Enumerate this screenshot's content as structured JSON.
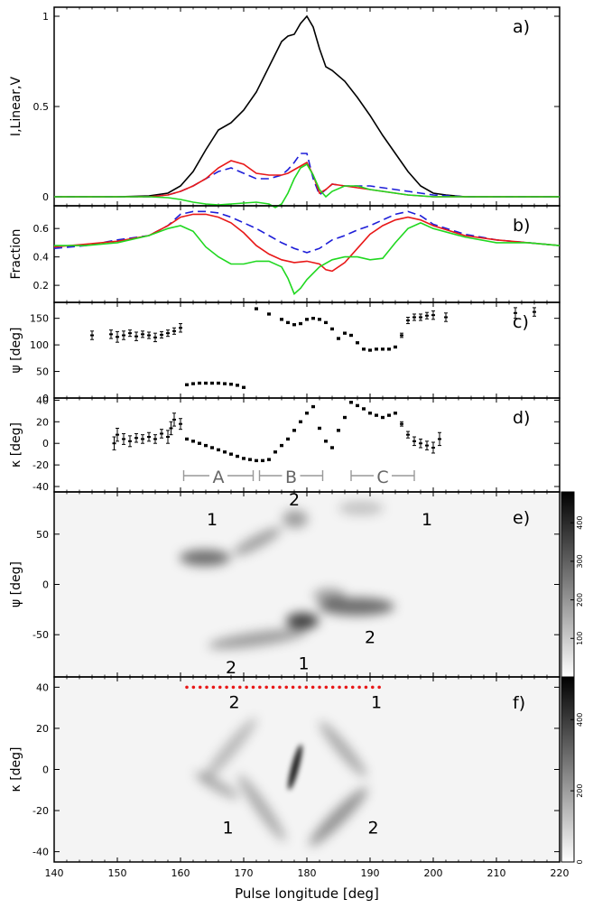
{
  "chart_data": [
    {
      "panel": "a)",
      "type": "line",
      "ylabel": "I,Linear,V",
      "xlim": [
        140,
        220
      ],
      "ylim": [
        -0.05,
        1.05
      ],
      "xticks": [
        140,
        150,
        160,
        170,
        180,
        190,
        200,
        210,
        220
      ],
      "yticks": [
        {
          "v": 0,
          "label": "0"
        },
        {
          "v": 0.5,
          "label": "0.5"
        },
        {
          "v": 1,
          "label": "1"
        }
      ],
      "series": [
        {
          "color": "#000000",
          "dash": false,
          "x": [
            140,
            150,
            155,
            158,
            160,
            162,
            164,
            166,
            168,
            170,
            172,
            174,
            176,
            177,
            178,
            179,
            180,
            181,
            182,
            183,
            184,
            186,
            188,
            190,
            192,
            194,
            196,
            198,
            200,
            202,
            205,
            210,
            220
          ],
          "y": [
            0,
            0,
            0.005,
            0.02,
            0.06,
            0.14,
            0.26,
            0.37,
            0.41,
            0.48,
            0.58,
            0.72,
            0.86,
            0.89,
            0.9,
            0.96,
            1.0,
            0.94,
            0.82,
            0.72,
            0.7,
            0.64,
            0.55,
            0.45,
            0.34,
            0.24,
            0.14,
            0.06,
            0.02,
            0.01,
            0,
            0,
            0
          ]
        },
        {
          "color": "#1e1ed8",
          "dash": true,
          "x": [
            140,
            155,
            158,
            160,
            162,
            164,
            166,
            168,
            170,
            172,
            174,
            176,
            177,
            178,
            179,
            180,
            181,
            182,
            183,
            184,
            186,
            188,
            190,
            192,
            194,
            196,
            198,
            200,
            205,
            220
          ],
          "y": [
            0,
            0,
            0.01,
            0.03,
            0.06,
            0.1,
            0.14,
            0.16,
            0.13,
            0.1,
            0.1,
            0.12,
            0.15,
            0.19,
            0.24,
            0.24,
            0.1,
            0.01,
            0.04,
            0.07,
            0.06,
            0.06,
            0.06,
            0.05,
            0.04,
            0.03,
            0.02,
            0.01,
            0,
            0
          ]
        },
        {
          "color": "#e81818",
          "dash": false,
          "x": [
            140,
            155,
            158,
            160,
            162,
            164,
            166,
            168,
            170,
            172,
            174,
            176,
            177,
            178,
            179,
            180,
            181,
            182,
            183,
            184,
            186,
            188,
            190,
            192,
            194,
            196,
            198,
            200,
            205,
            220
          ],
          "y": [
            0,
            0,
            0.01,
            0.03,
            0.06,
            0.1,
            0.16,
            0.2,
            0.18,
            0.13,
            0.12,
            0.12,
            0.13,
            0.15,
            0.17,
            0.19,
            0.12,
            0.02,
            0.04,
            0.07,
            0.06,
            0.05,
            0.04,
            0.03,
            0.02,
            0.01,
            0.005,
            0,
            0,
            0
          ]
        },
        {
          "color": "#20d820",
          "dash": false,
          "x": [
            140,
            155,
            158,
            160,
            162,
            164,
            166,
            168,
            170,
            172,
            174,
            175,
            176,
            177,
            178,
            179,
            180,
            181,
            182,
            183,
            184,
            186,
            188,
            190,
            192,
            194,
            196,
            198,
            200,
            205,
            220
          ],
          "y": [
            0,
            0,
            -0.005,
            -0.015,
            -0.03,
            -0.04,
            -0.045,
            -0.04,
            -0.035,
            -0.03,
            -0.04,
            -0.06,
            -0.04,
            0.02,
            0.1,
            0.16,
            0.18,
            0.12,
            0.04,
            0.0,
            0.03,
            0.06,
            0.06,
            0.04,
            0.03,
            0.02,
            0.01,
            0.005,
            0,
            0,
            0
          ]
        }
      ]
    },
    {
      "panel": "b)",
      "type": "line",
      "ylabel": "Fraction",
      "xlim": [
        140,
        220
      ],
      "ylim": [
        0.08,
        0.76
      ],
      "yticks": [
        {
          "v": 0.2,
          "label": "0.2"
        },
        {
          "v": 0.4,
          "label": "0.4"
        },
        {
          "v": 0.6,
          "label": "0.6"
        }
      ],
      "series": [
        {
          "color": "#1e1ed8",
          "dash": true,
          "x": [
            140,
            145,
            150,
            155,
            158,
            160,
            162,
            164,
            166,
            168,
            170,
            172,
            174,
            176,
            178,
            180,
            182,
            184,
            186,
            188,
            190,
            192,
            194,
            196,
            198,
            200,
            205,
            210,
            215,
            220
          ],
          "y": [
            0.46,
            0.48,
            0.52,
            0.55,
            0.62,
            0.7,
            0.72,
            0.72,
            0.71,
            0.68,
            0.64,
            0.6,
            0.55,
            0.5,
            0.46,
            0.43,
            0.46,
            0.52,
            0.55,
            0.59,
            0.62,
            0.66,
            0.7,
            0.72,
            0.69,
            0.63,
            0.56,
            0.52,
            0.5,
            0.48
          ]
        },
        {
          "color": "#e81818",
          "dash": false,
          "x": [
            140,
            145,
            150,
            155,
            158,
            160,
            162,
            164,
            166,
            168,
            170,
            172,
            174,
            176,
            178,
            180,
            182,
            183,
            184,
            186,
            188,
            190,
            192,
            194,
            196,
            198,
            200,
            205,
            210,
            215,
            220
          ],
          "y": [
            0.47,
            0.49,
            0.51,
            0.55,
            0.62,
            0.68,
            0.7,
            0.7,
            0.68,
            0.64,
            0.57,
            0.48,
            0.42,
            0.38,
            0.36,
            0.37,
            0.35,
            0.31,
            0.3,
            0.36,
            0.46,
            0.56,
            0.62,
            0.66,
            0.68,
            0.66,
            0.62,
            0.55,
            0.52,
            0.5,
            0.48
          ]
        },
        {
          "color": "#20d820",
          "dash": false,
          "x": [
            140,
            145,
            150,
            155,
            158,
            160,
            162,
            164,
            166,
            168,
            170,
            172,
            174,
            176,
            177,
            178,
            179,
            180,
            182,
            184,
            186,
            188,
            190,
            192,
            194,
            196,
            198,
            200,
            205,
            210,
            215,
            220
          ],
          "y": [
            0.48,
            0.48,
            0.5,
            0.55,
            0.6,
            0.62,
            0.58,
            0.47,
            0.4,
            0.35,
            0.35,
            0.37,
            0.37,
            0.33,
            0.25,
            0.14,
            0.18,
            0.24,
            0.33,
            0.38,
            0.4,
            0.4,
            0.38,
            0.39,
            0.5,
            0.6,
            0.64,
            0.6,
            0.54,
            0.5,
            0.5,
            0.48
          ]
        }
      ]
    },
    {
      "panel": "c)",
      "type": "scatter",
      "ylabel": "ψ [deg]",
      "xlim": [
        140,
        220
      ],
      "ylim": [
        0,
        180
      ],
      "yticks": [
        {
          "v": 0,
          "label": "0"
        },
        {
          "v": 50,
          "label": "50"
        },
        {
          "v": 100,
          "label": "100"
        },
        {
          "v": 150,
          "label": "150"
        }
      ],
      "points_x": [
        146,
        149,
        150,
        151,
        152,
        153,
        154,
        155,
        156,
        157,
        158,
        159,
        160,
        161,
        162,
        163,
        164,
        165,
        166,
        167,
        168,
        169,
        170,
        172,
        174,
        176,
        177,
        178,
        179,
        180,
        181,
        182,
        183,
        184,
        185,
        186,
        187,
        188,
        189,
        190,
        191,
        192,
        193,
        194,
        195,
        196,
        197,
        198,
        199,
        200,
        202,
        213,
        216
      ],
      "points_y": [
        118,
        120,
        115,
        118,
        122,
        116,
        120,
        118,
        114,
        119,
        122,
        126,
        132,
        25,
        27,
        28,
        28,
        28,
        28,
        27,
        26,
        24,
        20,
        168,
        158,
        148,
        142,
        138,
        140,
        148,
        150,
        148,
        142,
        130,
        112,
        122,
        118,
        104,
        92,
        90,
        92,
        92,
        92,
        96,
        118,
        146,
        152,
        152,
        155,
        156,
        152,
        160,
        162
      ],
      "errors": [
        8,
        8,
        10,
        8,
        6,
        8,
        6,
        6,
        8,
        6,
        6,
        6,
        8,
        2,
        2,
        2,
        2,
        2,
        2,
        2,
        2,
        2,
        2,
        2,
        2,
        2,
        2,
        2,
        2,
        2,
        2,
        2,
        2,
        2,
        2,
        2,
        2,
        2,
        2,
        2,
        2,
        2,
        2,
        2,
        4,
        6,
        6,
        6,
        6,
        8,
        8,
        10,
        8
      ]
    },
    {
      "panel": "d)",
      "type": "scatter",
      "ylabel": "κ [deg]",
      "xlim": [
        140,
        220
      ],
      "ylim": [
        -45,
        42
      ],
      "yticks": [
        {
          "v": -40,
          "label": "-40"
        },
        {
          "v": -20,
          "label": "-20"
        },
        {
          "v": 0,
          "label": "0"
        },
        {
          "v": 20,
          "label": "20"
        },
        {
          "v": 40,
          "label": "40"
        }
      ],
      "points_x": [
        149.5,
        150,
        151,
        152,
        153,
        154,
        155,
        156,
        157,
        158,
        158.5,
        159,
        160,
        161,
        162,
        163,
        164,
        165,
        166,
        167,
        168,
        169,
        170,
        171,
        172,
        173,
        174,
        175,
        176,
        177,
        178,
        179,
        180,
        181,
        182,
        183,
        184,
        185,
        186,
        187,
        188,
        189,
        190,
        191,
        192,
        193,
        194,
        195,
        196,
        197,
        198,
        199,
        200,
        201
      ],
      "points_y": [
        0,
        8,
        4,
        2,
        5,
        4,
        6,
        4,
        9,
        6,
        14,
        22,
        18,
        4,
        2,
        0,
        -2,
        -4,
        -6,
        -8,
        -10,
        -12,
        -14,
        -15,
        -16,
        -16,
        -15,
        -8,
        -2,
        4,
        12,
        20,
        28,
        34,
        14,
        2,
        -4,
        12,
        24,
        38,
        35,
        32,
        28,
        26,
        24,
        26,
        28,
        18,
        8,
        2,
        0,
        -2,
        -4,
        4
      ],
      "errors": [
        6,
        6,
        5,
        5,
        4,
        4,
        4,
        4,
        4,
        6,
        6,
        6,
        5,
        1,
        1,
        1,
        1,
        1,
        1,
        1,
        1,
        1,
        1,
        1,
        1,
        1,
        1,
        1,
        1,
        1,
        1,
        1,
        1,
        1,
        1,
        1,
        1,
        1,
        1,
        1,
        1,
        1,
        1,
        1,
        1,
        1,
        1,
        2,
        3,
        4,
        4,
        4,
        5,
        6
      ],
      "regions": [
        {
          "label": "A",
          "x0": 160.5,
          "x1": 171.5
        },
        {
          "label": "B",
          "x0": 172.5,
          "x1": 182.5
        },
        {
          "label": "C",
          "x0": 187,
          "x1": 197
        }
      ]
    },
    {
      "panel": "e)",
      "type": "heatmap",
      "ylabel": "ψ [deg]",
      "xlim": [
        140,
        220
      ],
      "ylim": [
        -92,
        92
      ],
      "yticks": [
        {
          "v": -50,
          "label": "-50"
        },
        {
          "v": 0,
          "label": "0"
        },
        {
          "v": 50,
          "label": "50"
        }
      ],
      "colorbar_ticks": [
        100,
        200,
        300,
        400
      ],
      "colorbar_max": 480,
      "labels": [
        {
          "text": "1",
          "x": 165,
          "y": 65
        },
        {
          "text": "2",
          "x": 178,
          "y": 85
        },
        {
          "text": "1",
          "x": 199,
          "y": 65
        },
        {
          "text": "2",
          "x": 190,
          "y": -52
        },
        {
          "text": "2",
          "x": 168,
          "y": -82
        },
        {
          "text": "1",
          "x": 179.5,
          "y": -78
        }
      ]
    },
    {
      "panel": "f)",
      "type": "heatmap",
      "ylabel": "κ [deg]",
      "xlabel": "Pulse longitude [deg]",
      "xlim": [
        140,
        220
      ],
      "ylim": [
        -45,
        45
      ],
      "xticks": [
        140,
        150,
        160,
        170,
        180,
        190,
        200,
        210,
        220
      ],
      "yticks": [
        {
          "v": -40,
          "label": "-40"
        },
        {
          "v": -20,
          "label": "-20"
        },
        {
          "v": 0,
          "label": "0"
        },
        {
          "v": 20,
          "label": "20"
        },
        {
          "v": 40,
          "label": "40"
        }
      ],
      "colorbar_ticks": [
        0,
        200,
        400
      ],
      "colorbar_max": 520,
      "dotted_line": {
        "x0": 161,
        "x1": 192,
        "y": 40
      },
      "labels": [
        {
          "text": "2",
          "x": 168.5,
          "y": 33
        },
        {
          "text": "1",
          "x": 191,
          "y": 33
        },
        {
          "text": "1",
          "x": 167.5,
          "y": -28
        },
        {
          "text": "2",
          "x": 190.5,
          "y": -28
        }
      ]
    }
  ]
}
